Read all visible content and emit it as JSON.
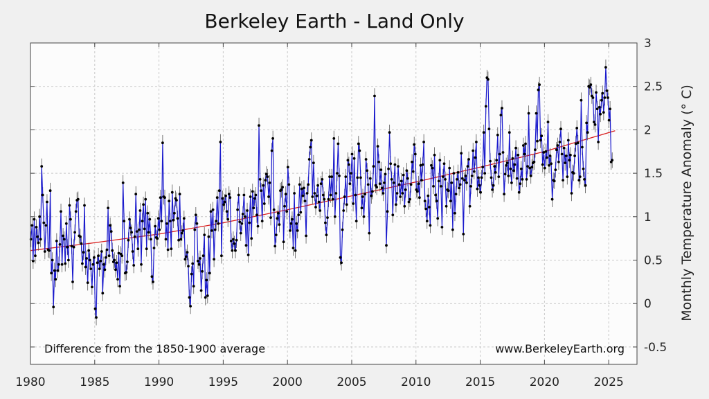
{
  "chart_data": {
    "type": "line",
    "title": "Berkeley Earth - Land Only",
    "ylabel": "Monthly Temperature Anomaly (° C)",
    "xlabel": "",
    "note_left": "Difference from the 1850-1900 average",
    "note_right": "www.BerkeleyEarth.org",
    "xlim": [
      1980,
      2027.2
    ],
    "ylim": [
      -0.7,
      3.0
    ],
    "x_ticks": [
      1980,
      1985,
      1990,
      1995,
      2000,
      2005,
      2010,
      2015,
      2020,
      2025
    ],
    "y_ticks": [
      -0.5,
      0,
      0.5,
      1,
      1.5,
      2,
      2.5,
      3
    ],
    "y_tick_labels": [
      "-0.5",
      "0",
      "0.5",
      "1",
      "1.5",
      "2",
      "2.5",
      "3"
    ],
    "grid": true,
    "legend": "none",
    "colors": {
      "series": "#1a1acc",
      "trend": "#d81b1b",
      "points": "#000000",
      "error_bars": "#555555"
    },
    "series": [
      {
        "x_start": 1980.04,
        "x_step": 0.0833,
        "values": [
          0.74,
          0.9,
          0.49,
          0.97,
          0.55,
          0.88,
          0.77,
          0.7,
          1.0,
          0.74,
          1.58,
          1.25,
          0.93,
          0.6,
          0.9,
          1.17,
          0.62,
          0.61,
          1.3,
          0.35,
          0.5,
          -0.04,
          0.38,
          0.28,
          0.72,
          0.38,
          0.45,
          0.68,
          1.06,
          0.45,
          0.78,
          0.74,
          0.46,
          0.92,
          0.65,
          0.5,
          1.13,
          0.97,
          0.66,
          0.25,
          0.65,
          0.82,
          1.06,
          1.19,
          1.2,
          0.78,
          0.77,
          0.69,
          0.46,
          0.59,
          1.13,
          0.42,
          0.52,
          0.24,
          0.61,
          0.5,
          0.4,
          0.19,
          0.45,
          0.53,
          -0.06,
          -0.16,
          0.47,
          0.55,
          0.4,
          0.49,
          0.6,
          0.12,
          0.45,
          0.39,
          0.53,
          0.62,
          1.1,
          0.55,
          0.9,
          0.83,
          0.61,
          0.48,
          0.5,
          0.39,
          0.47,
          0.28,
          0.58,
          0.2,
          0.57,
          0.55,
          1.39,
          0.95,
          0.35,
          0.36,
          0.48,
          0.73,
          0.97,
          0.87,
          0.82,
          0.6,
          0.44,
          0.77,
          1.26,
          0.83,
          0.63,
          0.85,
          1.07,
          0.45,
          0.95,
          1.14,
          0.86,
          1.2,
          0.63,
          1.04,
          0.82,
          0.97,
          0.74,
          0.31,
          0.25,
          0.64,
          0.89,
          0.76,
          0.75,
          0.98,
          0.85,
          1.22,
          0.95,
          1.85,
          1.23,
          1.22,
          0.74,
          0.92,
          0.62,
          1.18,
          0.95,
          0.63,
          1.28,
          0.96,
          1.04,
          1.21,
          1.19,
          0.98,
          0.73,
          1.26,
          0.74,
          0.81,
          0.84,
          0.98,
          0.51,
          0.54,
          0.59,
          0.43,
          0.07,
          -0.03,
          0.34,
          0.46,
          0.2,
          0.85,
          1.02,
          0.92,
          0.49,
          0.45,
          0.52,
          0.15,
          0.37,
          0.55,
          0.79,
          0.07,
          0.27,
          0.09,
          0.77,
          0.35,
          1.06,
          0.84,
          1.08,
          0.51,
          0.85,
          0.95,
          1.22,
          0.92,
          1.3,
          1.86,
          0.55,
          1.21,
          1.14,
          1.17,
          1.24,
          1.06,
          0.97,
          1.26,
          1.22,
          0.72,
          0.61,
          0.74,
          0.69,
          0.61,
          0.73,
          1.08,
          1.25,
          0.94,
          0.81,
          0.92,
          1.03,
          1.25,
          1.0,
          0.67,
          1.07,
          0.56,
          0.93,
          1.23,
          0.75,
          1.29,
          1.1,
          1.21,
          1.25,
          1.02,
          0.89,
          2.05,
          1.43,
          1.3,
          0.95,
          1.36,
          1.15,
          1.42,
          1.49,
          1.46,
          1.23,
          1.39,
          0.99,
          1.76,
          1.9,
          1.08,
          0.66,
          0.79,
          0.98,
          1.04,
          0.91,
          1.3,
          1.31,
          1.34,
          0.71,
          1.12,
          1.26,
          1.06,
          1.57,
          1.37,
          0.84,
          0.92,
          0.97,
          0.64,
          1.27,
          0.61,
          0.92,
          0.84,
          1.02,
          1.37,
          1.05,
          1.32,
          1.24,
          1.33,
          1.18,
          0.78,
          1.27,
          1.37,
          1.66,
          1.8,
          1.88,
          1.23,
          1.62,
          1.27,
          1.11,
          1.24,
          1.36,
          1.17,
          1.07,
          1.38,
          1.43,
          1.25,
          1.2,
          0.93,
          0.79,
          0.99,
          1.2,
          1.46,
          1.25,
          1.46,
          1.2,
          1.9,
          1.0,
          1.27,
          1.5,
          1.84,
          1.47,
          0.53,
          0.47,
          0.85,
          1.07,
          1.23,
          1.46,
          1.14,
          1.65,
          1.6,
          1.38,
          1.5,
          1.72,
          1.15,
          1.67,
          1.25,
          0.95,
          1.45,
          1.84,
          1.76,
          1.45,
          1.1,
          1.23,
          1.0,
          1.26,
          1.66,
          1.53,
          1.37,
          0.81,
          1.44,
          1.24,
          1.29,
          1.58,
          2.39,
          1.36,
          1.34,
          1.81,
          1.63,
          1.38,
          1.54,
          1.33,
          1.27,
          1.39,
          1.49,
          0.67,
          1.06,
          1.55,
          1.97,
          1.61,
          1.43,
          1.02,
          1.39,
          1.6,
          1.14,
          1.27,
          1.58,
          1.37,
          1.23,
          1.41,
          1.27,
          1.48,
          1.12,
          1.31,
          1.53,
          1.44,
          1.17,
          1.2,
          1.37,
          1.63,
          1.52,
          1.83,
          1.72,
          1.31,
          1.29,
          1.38,
          1.22,
          1.59,
          1.42,
          1.6,
          1.86,
          1.18,
          1.09,
          0.95,
          1.24,
          1.11,
          0.9,
          1.59,
          1.56,
          1.35,
          1.71,
          1.25,
          1.18,
          0.98,
          1.41,
          1.65,
          1.35,
          0.88,
          1.46,
          1.61,
          1.43,
          1.12,
          1.31,
          1.3,
          1.56,
          1.18,
          1.39,
          0.85,
          1.5,
          1.04,
          1.26,
          1.43,
          1.51,
          1.33,
          1.37,
          1.73,
          1.44,
          0.8,
          1.42,
          1.47,
          1.39,
          1.58,
          1.66,
          1.12,
          1.35,
          1.47,
          1.76,
          1.52,
          1.68,
          1.86,
          1.32,
          1.45,
          1.36,
          1.28,
          1.45,
          1.57,
          1.97,
          1.5,
          2.27,
          2.6,
          2.58,
          2.01,
          1.64,
          1.45,
          1.31,
          1.36,
          1.58,
          1.51,
          1.65,
          1.94,
          1.46,
          1.72,
          2.17,
          2.25,
          1.74,
          1.26,
          1.49,
          1.59,
          1.62,
          1.47,
          1.97,
          1.55,
          1.39,
          1.67,
          1.53,
          1.6,
          1.79,
          1.44,
          1.71,
          1.28,
          1.38,
          1.55,
          1.43,
          1.82,
          1.72,
          1.84,
          1.43,
          1.58,
          2.19,
          1.56,
          1.47,
          1.57,
          1.62,
          1.63,
          1.77,
          2.19,
          1.87,
          2.46,
          2.52,
          1.88,
          1.93,
          1.6,
          1.74,
          1.56,
          1.75,
          1.68,
          2.09,
          1.59,
          1.7,
          1.61,
          1.2,
          1.42,
          1.41,
          1.54,
          1.77,
          1.82,
          1.63,
          1.86,
          2.01,
          1.72,
          1.42,
          1.79,
          1.62,
          1.7,
          1.46,
          1.88,
          1.65,
          1.71,
          1.27,
          1.51,
          1.5,
          1.7,
          1.84,
          2.02,
          1.85,
          1.42,
          1.46,
          2.34,
          1.8,
          1.55,
          1.43,
          1.36,
          2.08,
          1.97,
          2.5,
          2.49,
          2.52,
          2.39,
          2.37,
          2.09,
          2.06,
          2.43,
          2.24,
          1.86,
          2.26,
          2.18,
          2.34,
          2.42,
          2.2,
          2.37,
          2.72,
          2.45,
          2.37,
          2.11,
          2.24,
          1.63,
          1.65
        ]
      },
      {
        "name": "trend",
        "x": [
          1980,
          1985,
          1990,
          1995,
          2000,
          2005,
          2010,
          2015,
          2020,
          2025.5
        ],
        "values": [
          0.61,
          0.7,
          0.8,
          0.93,
          1.08,
          1.24,
          1.4,
          1.57,
          1.75,
          1.99
        ]
      }
    ]
  }
}
